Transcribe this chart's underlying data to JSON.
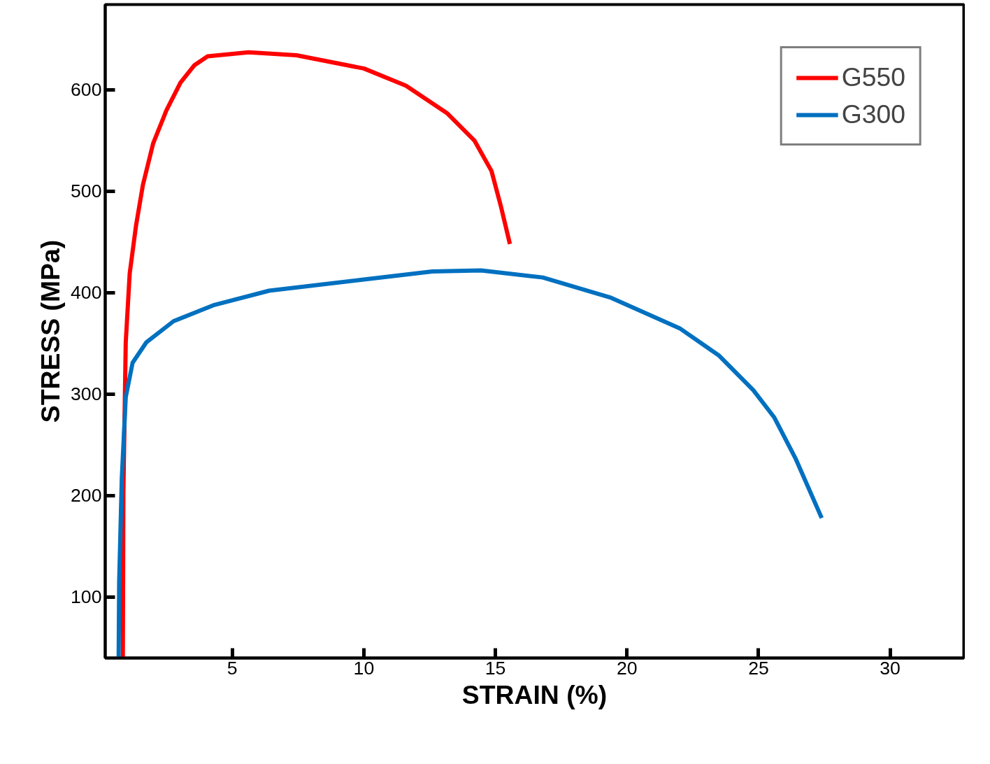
{
  "chart_data": {
    "type": "line",
    "xlabel": "STRAIN (%)",
    "ylabel": "STRESS (MPa)",
    "xlim": [
      0.17,
      32.8
    ],
    "ylim": [
      40,
      684
    ],
    "xticks": [
      5,
      10,
      15,
      20,
      25,
      30
    ],
    "yticks": [
      100,
      200,
      300,
      400,
      500,
      600
    ],
    "grid": false,
    "legend": "top right",
    "marker": "none",
    "line_style": "solid",
    "series": [
      {
        "name": "G550",
        "color": "#ff0000",
        "x": [
          0.84,
          0.86,
          0.95,
          1.1,
          1.34,
          1.6,
          1.99,
          2.5,
          3.03,
          3.55,
          4.06,
          5.62,
          7.44,
          10.0,
          11.6,
          13.16,
          14.2,
          14.85,
          15.2,
          15.55
        ],
        "values": [
          40,
          203,
          351,
          419,
          466,
          506,
          547,
          580,
          607,
          624,
          633,
          637,
          634,
          621,
          604,
          577,
          550,
          520,
          486,
          448
        ]
      },
      {
        "name": "G300",
        "color": "#0070c0",
        "x": [
          0.68,
          0.7,
          0.8,
          0.95,
          1.21,
          1.73,
          2.77,
          4.32,
          6.4,
          10.0,
          12.6,
          14.45,
          16.8,
          19.4,
          22.0,
          23.5,
          24.8,
          25.6,
          26.4,
          27.4
        ],
        "values": [
          40,
          115,
          217,
          297,
          331,
          351,
          372,
          388,
          402,
          413,
          421,
          422,
          415,
          395,
          365,
          338,
          304,
          277,
          237,
          178
        ]
      }
    ]
  }
}
